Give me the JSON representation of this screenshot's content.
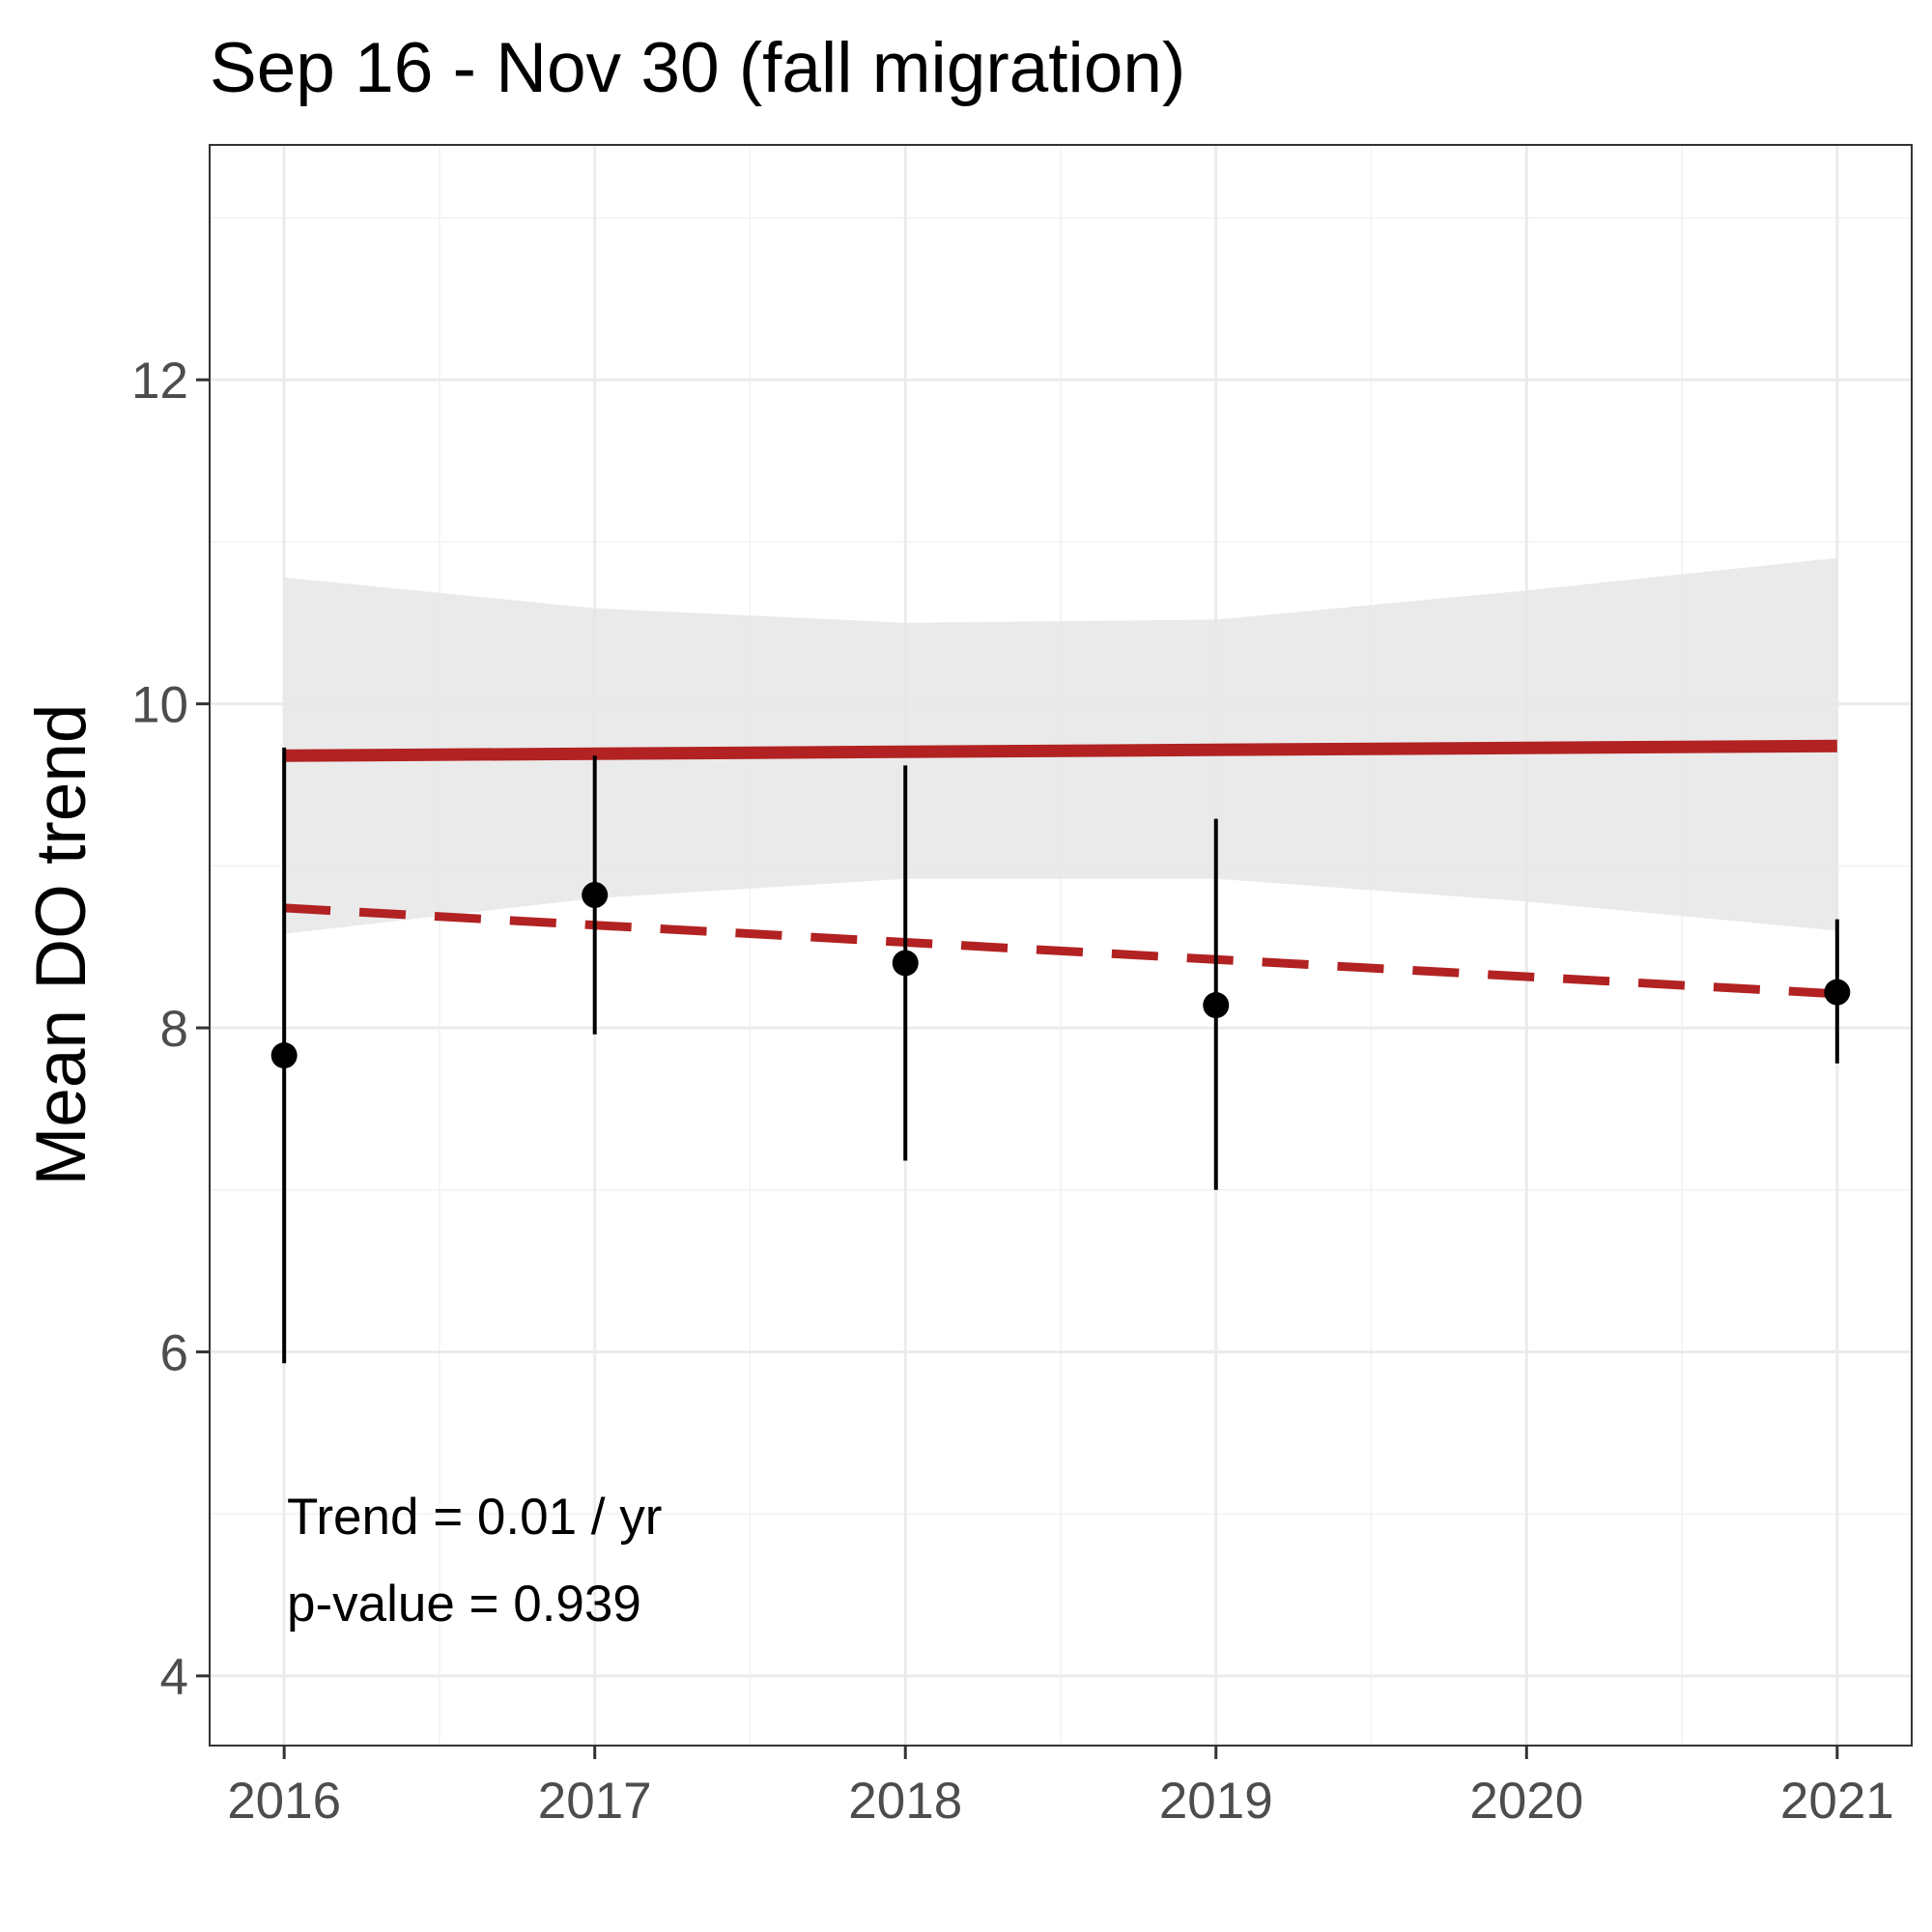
{
  "chart_data": {
    "type": "scatter",
    "title": "Sep 16 - Nov 30 (fall migration)",
    "xlabel": "",
    "ylabel": "Mean DO trend",
    "xlim": [
      2015.76,
      2021.24
    ],
    "ylim": [
      3.57,
      13.45
    ],
    "x_ticks": [
      2016,
      2017,
      2018,
      2019,
      2020,
      2021
    ],
    "x_tick_labels": [
      "2016",
      "2017",
      "2018",
      "2019",
      "2020",
      "2021"
    ],
    "y_ticks": [
      4,
      6,
      8,
      10,
      12
    ],
    "y_tick_labels": [
      "4",
      "6",
      "8",
      "10",
      "12"
    ],
    "grid": true,
    "points": [
      {
        "x": 2016,
        "y": 7.83,
        "low": 5.93,
        "high": 9.73
      },
      {
        "x": 2017,
        "y": 8.82,
        "low": 7.96,
        "high": 9.68
      },
      {
        "x": 2018,
        "y": 8.4,
        "low": 7.18,
        "high": 9.62
      },
      {
        "x": 2019,
        "y": 8.14,
        "low": 7.0,
        "high": 9.29
      },
      {
        "x": 2021,
        "y": 8.22,
        "low": 7.78,
        "high": 8.67
      }
    ],
    "trend_line": {
      "x": [
        2016,
        2021
      ],
      "y": [
        9.68,
        9.74
      ],
      "color": "#B22222"
    },
    "confidence_band": {
      "x": [
        2016,
        2017,
        2018,
        2019,
        2020,
        2021
      ],
      "upper": [
        10.78,
        10.59,
        10.5,
        10.52,
        10.7,
        10.9
      ],
      "lower": [
        8.58,
        8.8,
        8.92,
        8.92,
        8.78,
        8.6
      ],
      "color": "#E6E6E6"
    },
    "dashed_line": {
      "x": [
        2016,
        2021
      ],
      "y": [
        8.74,
        8.21
      ],
      "color": "#B22222"
    },
    "annotations": [
      "Trend = 0.01 / yr",
      "p-value = 0.939"
    ]
  }
}
